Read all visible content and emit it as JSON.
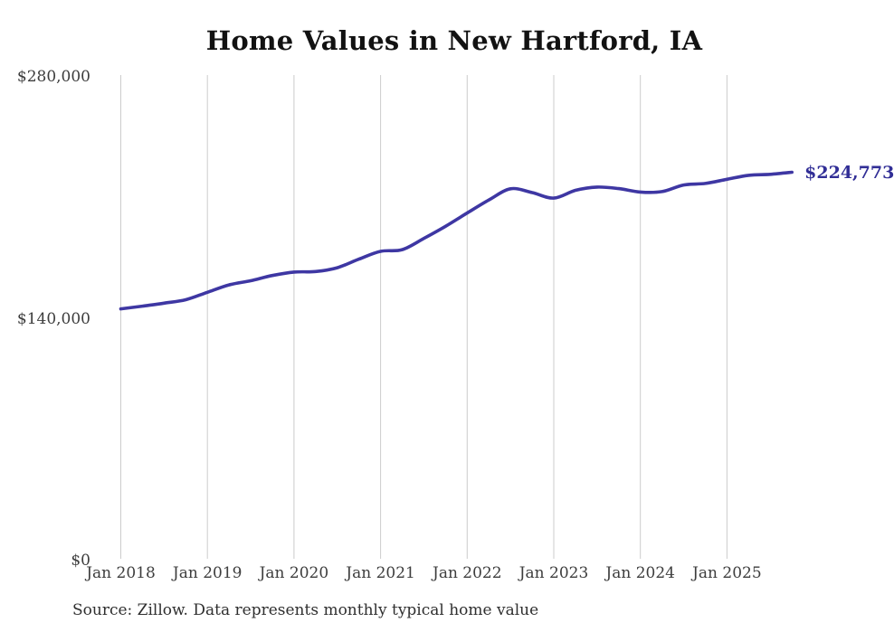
{
  "chart_data": {
    "type": "line",
    "title": "Home Values in New Hartford, IA",
    "source_note": "Source: Zillow. Data represents monthly typical home value",
    "x": [
      "2018-01",
      "2018-04",
      "2018-07",
      "2018-10",
      "2019-01",
      "2019-04",
      "2019-07",
      "2019-10",
      "2020-01",
      "2020-04",
      "2020-07",
      "2020-10",
      "2021-01",
      "2021-04",
      "2021-07",
      "2021-10",
      "2022-01",
      "2022-04",
      "2022-07",
      "2022-10",
      "2023-01",
      "2023-04",
      "2023-07",
      "2023-10",
      "2024-01",
      "2024-04",
      "2024-07",
      "2024-10",
      "2025-01",
      "2025-04",
      "2025-07",
      "2025-10"
    ],
    "values": [
      145700,
      147300,
      149000,
      151000,
      155300,
      159600,
      162000,
      165000,
      167000,
      167300,
      169500,
      174500,
      179000,
      180000,
      186500,
      193500,
      201200,
      208700,
      215200,
      213000,
      209800,
      214300,
      216200,
      215300,
      213300,
      213600,
      217400,
      218300,
      220700,
      223000,
      223600,
      224773
    ],
    "series_name": "Typical home value",
    "x_ticks": [
      {
        "m": "2018-01",
        "label": "Jan 2018"
      },
      {
        "m": "2019-01",
        "label": "Jan 2019"
      },
      {
        "m": "2020-01",
        "label": "Jan 2020"
      },
      {
        "m": "2021-01",
        "label": "Jan 2021"
      },
      {
        "m": "2022-01",
        "label": "Jan 2022"
      },
      {
        "m": "2023-01",
        "label": "Jan 2023"
      },
      {
        "m": "2024-01",
        "label": "Jan 2024"
      },
      {
        "m": "2025-01",
        "label": "Jan 2025"
      }
    ],
    "y_ticks": [
      {
        "v": 0,
        "label": "$0"
      },
      {
        "v": 140000,
        "label": "$140,000"
      },
      {
        "v": 280000,
        "label": "$280,000"
      }
    ],
    "ylim": [
      0,
      280000
    ],
    "grid": "vertical-only",
    "legend": "none",
    "line_color": "#3e37a3",
    "grid_color": "#cccccc",
    "end_label": {
      "text": "$224,773",
      "value": 224773,
      "color": "#312e96"
    }
  }
}
